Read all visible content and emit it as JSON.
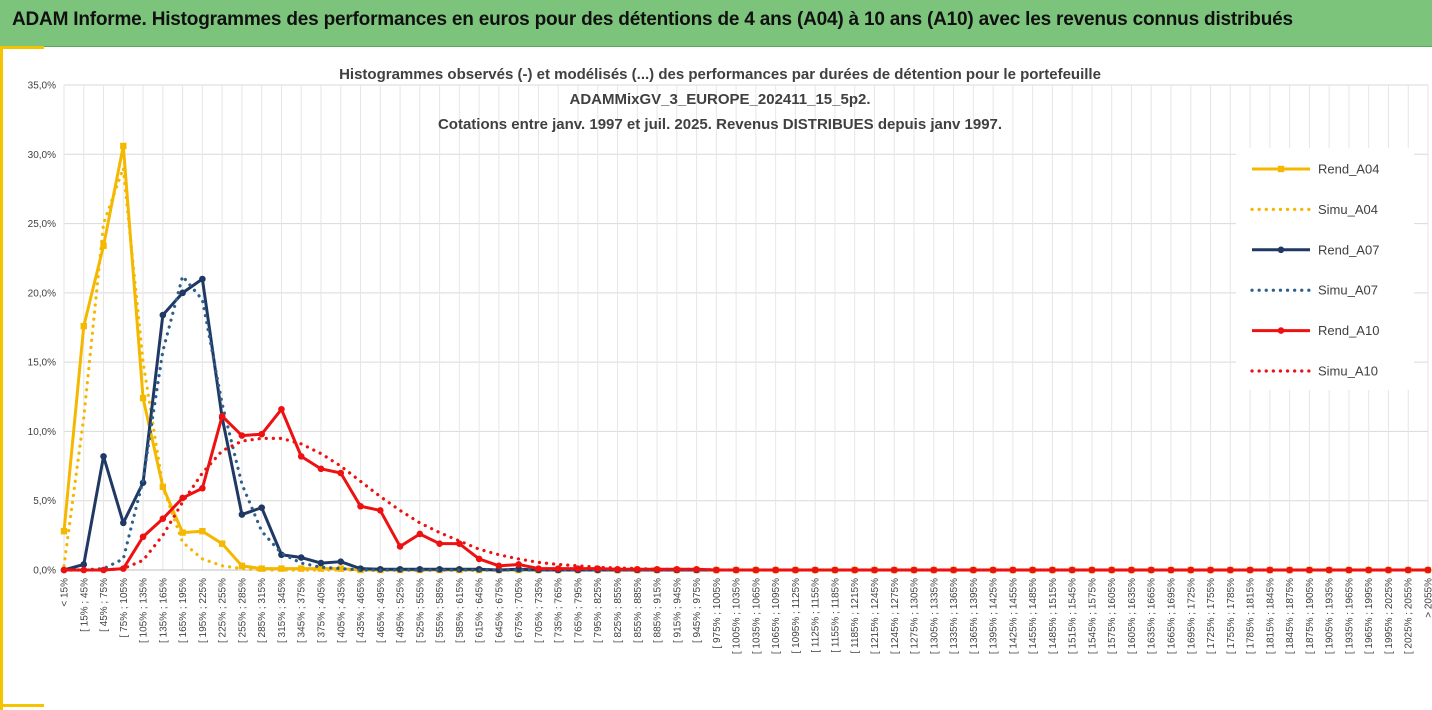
{
  "banner": {
    "title": "ADAM Informe. Histogrammes des performances en euros pour des détentions de 4 ans (A04) à 10 ans (A10) avec les revenus connus distribués"
  },
  "chart_data": {
    "type": "line",
    "title_lines": [
      "Histogrammes observés (-) et modélisés (...) des performances par durées de détention pour le portefeuille",
      "ADAMMixGV_3_EUROPE_202411_15_5p2.",
      "Cotations entre janv. 1997 et juil. 2025. Revenus DISTRIBUES depuis janv 1997."
    ],
    "y_ticks": [
      "0,0%",
      "5,0%",
      "10,0%",
      "15,0%",
      "20,0%",
      "25,0%",
      "30,0%",
      "35,0%"
    ],
    "ylim": [
      0,
      35
    ],
    "grid": true,
    "legend_position": "right",
    "categories": [
      "< 15%",
      "[ 15% ; 45%",
      "[ 45% ; 75%",
      "[ 75% ; 105%",
      "[ 105% ; 135%",
      "[ 135% ; 165%",
      "[ 165% ; 195%",
      "[ 195% ; 225%",
      "[ 225% ; 255%",
      "[ 255% ; 285%",
      "[ 285% ; 315%",
      "[ 315% ; 345%",
      "[ 345% ; 375%",
      "[ 375% ; 405%",
      "[ 405% ; 435%",
      "[ 435% ; 465%",
      "[ 465% ; 495%",
      "[ 495% ; 525%",
      "[ 525% ; 555%",
      "[ 555% ; 585%",
      "[ 585% ; 615%",
      "[ 615% ; 645%",
      "[ 645% ; 675%",
      "[ 675% ; 705%",
      "[ 705% ; 735%",
      "[ 735% ; 765%",
      "[ 765% ; 795%",
      "[ 795% ; 825%",
      "[ 825% ; 855%",
      "[ 855% ; 885%",
      "[ 885% ; 915%",
      "[ 915% ; 945%",
      "[ 945% ; 975%",
      "[ 975% ; 1005%",
      "[ 1005% ; 1035%",
      "[ 1035% ; 1065%",
      "[ 1065% ; 1095%",
      "[ 1095% ; 1125%",
      "[ 1125% ; 1155%",
      "[ 1155% ; 1185%",
      "[ 1185% ; 1215%",
      "[ 1215% ; 1245%",
      "[ 1245% ; 1275%",
      "[ 1275% ; 1305%",
      "[ 1305% ; 1335%",
      "[ 1335% ; 1365%",
      "[ 1365% ; 1395%",
      "[ 1395% ; 1425%",
      "[ 1425% ; 1455%",
      "[ 1455% ; 1485%",
      "[ 1485% ; 1515%",
      "[ 1515% ; 1545%",
      "[ 1545% ; 1575%",
      "[ 1575% ; 1605%",
      "[ 1605% ; 1635%",
      "[ 1635% ; 1665%",
      "[ 1665% ; 1695%",
      "[ 1695% ; 1725%",
      "[ 1725% ; 1755%",
      "[ 1755% ; 1785%",
      "[ 1785% ; 1815%",
      "[ 1815% ; 1845%",
      "[ 1845% ; 1875%",
      "[ 1875% ; 1905%",
      "[ 1905% ; 1935%",
      "[ 1935% ; 1965%",
      "[ 1965% ; 1995%",
      "[ 1995% ; 2025%",
      "[ 2025% ; 2055%",
      "> 2055%"
    ],
    "series": [
      {
        "name": "Rend_A04",
        "color": "#f5b800",
        "style": "solid",
        "marker": "square",
        "values": [
          2.8,
          17.6,
          23.4,
          30.6,
          12.4,
          6.0,
          2.7,
          2.8,
          1.9,
          0.3,
          0.1,
          0.1,
          0.1,
          0.1,
          0.1,
          0,
          0,
          0,
          0,
          0,
          0,
          0,
          0,
          0,
          0,
          0,
          0,
          0,
          0,
          0,
          0,
          0,
          0,
          0,
          0,
          0,
          0,
          0,
          0,
          0,
          0,
          0,
          0,
          0,
          0,
          0,
          0,
          0,
          0,
          0,
          0,
          0,
          0,
          0,
          0,
          0,
          0,
          0,
          0,
          0,
          0,
          0,
          0,
          0,
          0,
          0,
          0,
          0,
          0,
          0
        ]
      },
      {
        "name": "Simu_A04",
        "color": "#f5b800",
        "style": "dotted",
        "marker": "none",
        "values": [
          0.3,
          11.0,
          25.0,
          29.0,
          15.0,
          6.0,
          2.0,
          0.8,
          0.3,
          0.1,
          0,
          0,
          0,
          0,
          0,
          0,
          0,
          0,
          0,
          0,
          0,
          0,
          0,
          0,
          0,
          0,
          0,
          0,
          0,
          0,
          0,
          0,
          0,
          0,
          0,
          0,
          0,
          0,
          0,
          0,
          0,
          0,
          0,
          0,
          0,
          0,
          0,
          0,
          0,
          0,
          0,
          0,
          0,
          0,
          0,
          0,
          0,
          0,
          0,
          0,
          0,
          0,
          0,
          0,
          0,
          0,
          0,
          0,
          0,
          0
        ]
      },
      {
        "name": "Rend_A07",
        "color": "#1f3864",
        "style": "solid",
        "marker": "circle",
        "values": [
          0,
          0.4,
          8.2,
          3.4,
          6.3,
          18.4,
          20.0,
          21.0,
          11.0,
          4.0,
          4.5,
          1.1,
          0.9,
          0.5,
          0.6,
          0.1,
          0.05,
          0.05,
          0.05,
          0.05,
          0.05,
          0.05,
          0,
          0.05,
          0,
          0,
          0,
          0,
          0,
          0,
          0,
          0,
          0,
          0,
          0,
          0,
          0,
          0,
          0,
          0,
          0,
          0,
          0,
          0,
          0,
          0,
          0,
          0,
          0,
          0,
          0,
          0,
          0,
          0,
          0,
          0,
          0,
          0,
          0,
          0,
          0,
          0,
          0,
          0,
          0,
          0,
          0,
          0,
          0,
          0
        ]
      },
      {
        "name": "Simu_A07",
        "color": "#2e5f8a",
        "style": "dotted",
        "marker": "none",
        "values": [
          0,
          0,
          0.1,
          0.8,
          6.5,
          15.8,
          21.2,
          19.5,
          12.0,
          6.2,
          2.8,
          1.2,
          0.5,
          0.2,
          0.1,
          0,
          0,
          0,
          0,
          0,
          0,
          0,
          0,
          0,
          0,
          0,
          0,
          0,
          0,
          0,
          0,
          0,
          0,
          0,
          0,
          0,
          0,
          0,
          0,
          0,
          0,
          0,
          0,
          0,
          0,
          0,
          0,
          0,
          0,
          0,
          0,
          0,
          0,
          0,
          0,
          0,
          0,
          0,
          0,
          0,
          0,
          0,
          0,
          0,
          0,
          0,
          0,
          0,
          0,
          0
        ]
      },
      {
        "name": "Rend_A10",
        "color": "#ee1111",
        "style": "solid",
        "marker": "circle",
        "values": [
          0,
          0,
          0,
          0.1,
          2.4,
          3.7,
          5.2,
          5.9,
          11.1,
          9.7,
          9.8,
          11.6,
          8.2,
          7.3,
          7.0,
          4.6,
          4.3,
          1.7,
          2.6,
          1.9,
          1.9,
          0.8,
          0.3,
          0.4,
          0.1,
          0.1,
          0.1,
          0.1,
          0.05,
          0.05,
          0.05,
          0.05,
          0.05,
          0,
          0,
          0,
          0,
          0,
          0,
          0,
          0,
          0,
          0,
          0,
          0,
          0,
          0,
          0,
          0,
          0,
          0,
          0,
          0,
          0,
          0,
          0,
          0,
          0,
          0,
          0,
          0,
          0,
          0,
          0,
          0,
          0,
          0,
          0,
          0,
          0
        ]
      },
      {
        "name": "Simu_A10",
        "color": "#ee1111",
        "style": "dotted",
        "marker": "none",
        "values": [
          0,
          0,
          0,
          0.1,
          0.7,
          2.5,
          4.9,
          7.0,
          8.6,
          9.3,
          9.5,
          9.5,
          9.1,
          8.4,
          7.5,
          6.4,
          5.3,
          4.3,
          3.4,
          2.7,
          2.1,
          1.5,
          1.1,
          0.8,
          0.55,
          0.4,
          0.3,
          0.2,
          0.15,
          0.1,
          0.05,
          0.05,
          0.05,
          0,
          0,
          0,
          0,
          0,
          0,
          0,
          0,
          0,
          0,
          0,
          0,
          0,
          0,
          0,
          0,
          0,
          0,
          0,
          0,
          0,
          0,
          0,
          0,
          0,
          0,
          0,
          0,
          0,
          0,
          0,
          0,
          0,
          0,
          0,
          0,
          0
        ]
      }
    ]
  }
}
